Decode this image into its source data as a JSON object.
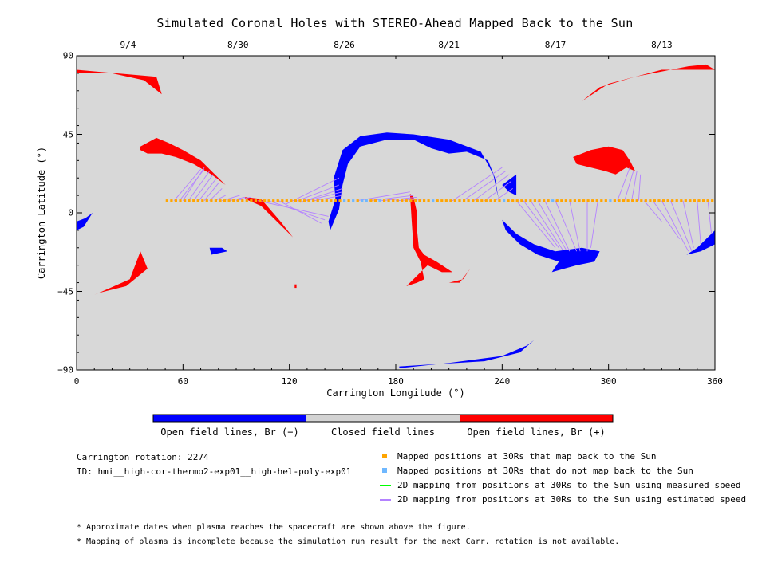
{
  "chart_data": {
    "type": "map",
    "title": "Simulated Coronal Holes with STEREO-Ahead Mapped Back to the Sun",
    "xlabel": "Carrington Longitude (°)",
    "ylabel": "Carrington Latitude (°)",
    "xlim": [
      0,
      360
    ],
    "ylim": [
      -90,
      90
    ],
    "x_ticks": [
      "0",
      "60",
      "120",
      "180",
      "240",
      "300",
      "360"
    ],
    "y_ticks": [
      "90",
      "45",
      "0",
      "−45",
      "−90"
    ],
    "top_axis": {
      "labels": [
        {
          "text": "9/4",
          "lon": 29
        },
        {
          "text": "8/30",
          "lon": 91
        },
        {
          "text": "8/26",
          "lon": 151
        },
        {
          "text": "8/21",
          "lon": 210
        },
        {
          "text": "8/17",
          "lon": 270
        },
        {
          "text": "8/13",
          "lon": 330
        }
      ]
    },
    "colors": {
      "background": "#d8d8d8",
      "negative": "#0000ff",
      "positive": "#ff0000",
      "closed": "#d3d3d3",
      "mapped": "#ffa500",
      "unmapped": "#6fb8ff",
      "measured": "#00ff00",
      "estimated": "#b482ff"
    },
    "regions": [
      {
        "polarity": "positive",
        "points": [
          [
            0,
            82
          ],
          [
            45,
            78
          ],
          [
            48,
            68
          ],
          [
            38,
            76
          ],
          [
            20,
            80
          ],
          [
            0,
            80
          ]
        ]
      },
      {
        "polarity": "positive",
        "points": [
          [
            355,
            85
          ],
          [
            360,
            82
          ],
          [
            330,
            82
          ],
          [
            300,
            74
          ],
          [
            285,
            64
          ],
          [
            295,
            72
          ],
          [
            315,
            78
          ],
          [
            345,
            84
          ]
        ]
      },
      {
        "polarity": "positive",
        "points": [
          [
            36,
            38
          ],
          [
            45,
            43
          ],
          [
            52,
            40
          ],
          [
            60,
            36
          ],
          [
            70,
            30
          ],
          [
            80,
            20
          ],
          [
            84,
            16
          ],
          [
            76,
            22
          ],
          [
            66,
            28
          ],
          [
            56,
            32
          ],
          [
            48,
            34
          ],
          [
            40,
            34
          ],
          [
            36,
            36
          ]
        ]
      },
      {
        "polarity": "positive",
        "points": [
          [
            280,
            32
          ],
          [
            290,
            36
          ],
          [
            300,
            38
          ],
          [
            308,
            36
          ],
          [
            312,
            30
          ],
          [
            315,
            24
          ],
          [
            310,
            26
          ],
          [
            304,
            22
          ],
          [
            298,
            24
          ],
          [
            290,
            26
          ],
          [
            282,
            28
          ]
        ]
      },
      {
        "polarity": "positive",
        "points": [
          [
            10,
            -47
          ],
          [
            30,
            -38
          ],
          [
            36,
            -22
          ],
          [
            40,
            -32
          ],
          [
            28,
            -42
          ],
          [
            12,
            -46
          ]
        ]
      },
      {
        "polarity": "positive",
        "points": [
          [
            95,
            9
          ],
          [
            104,
            8
          ],
          [
            115,
            -5
          ],
          [
            122,
            -14
          ],
          [
            116,
            -8
          ],
          [
            104,
            4
          ],
          [
            95,
            8
          ]
        ]
      },
      {
        "polarity": "positive",
        "points": [
          [
            188,
            11
          ],
          [
            190,
            9
          ],
          [
            192,
            0
          ],
          [
            192,
            -10
          ],
          [
            193,
            -20
          ],
          [
            196,
            -24
          ],
          [
            203,
            -28
          ],
          [
            212,
            -34
          ],
          [
            206,
            -34
          ],
          [
            198,
            -30
          ],
          [
            194,
            -34
          ],
          [
            190,
            -38
          ],
          [
            186,
            -42
          ],
          [
            192,
            -40
          ],
          [
            196,
            -38
          ],
          [
            194,
            -28
          ],
          [
            190,
            -20
          ],
          [
            189,
            -5
          ]
        ]
      },
      {
        "polarity": "positive",
        "points": [
          [
            206,
            -40
          ],
          [
            216,
            -40
          ],
          [
            222,
            -32
          ],
          [
            218,
            -38
          ],
          [
            210,
            -40
          ]
        ]
      },
      {
        "polarity": "positive",
        "points": [
          [
            123,
            -41
          ],
          [
            124,
            -41
          ],
          [
            124,
            -43
          ],
          [
            123,
            -43
          ]
        ]
      },
      {
        "polarity": "negative",
        "points": [
          [
            145,
            20
          ],
          [
            150,
            36
          ],
          [
            160,
            44
          ],
          [
            175,
            46
          ],
          [
            190,
            45
          ],
          [
            210,
            42
          ],
          [
            228,
            35
          ],
          [
            235,
            22
          ],
          [
            238,
            8
          ],
          [
            236,
            20
          ],
          [
            232,
            30
          ],
          [
            220,
            35
          ],
          [
            210,
            34
          ],
          [
            200,
            37
          ],
          [
            190,
            42
          ],
          [
            175,
            42
          ],
          [
            160,
            38
          ],
          [
            153,
            28
          ],
          [
            150,
            16
          ],
          [
            148,
            2
          ],
          [
            143,
            -10
          ],
          [
            142,
            -5
          ],
          [
            146,
            8
          ]
        ]
      },
      {
        "polarity": "negative",
        "points": [
          [
            240,
            16
          ],
          [
            248,
            22
          ],
          [
            248,
            10
          ],
          [
            244,
            12
          ]
        ]
      },
      {
        "polarity": "negative",
        "points": [
          [
            240,
            -4
          ],
          [
            248,
            -12
          ],
          [
            258,
            -18
          ],
          [
            270,
            -22
          ],
          [
            285,
            -20
          ],
          [
            295,
            -22
          ],
          [
            292,
            -28
          ],
          [
            282,
            -30
          ],
          [
            275,
            -32
          ],
          [
            268,
            -34
          ],
          [
            272,
            -28
          ],
          [
            260,
            -24
          ],
          [
            250,
            -18
          ],
          [
            242,
            -10
          ]
        ]
      },
      {
        "polarity": "negative",
        "points": [
          [
            350,
            -20
          ],
          [
            358,
            -12
          ],
          [
            360,
            -10
          ],
          [
            360,
            -18
          ],
          [
            352,
            -22
          ],
          [
            344,
            -24
          ]
        ]
      },
      {
        "polarity": "negative",
        "points": [
          [
            0,
            -5
          ],
          [
            5,
            -3
          ],
          [
            9,
            0
          ],
          [
            4,
            -8
          ],
          [
            0,
            -10
          ]
        ]
      },
      {
        "polarity": "negative",
        "points": [
          [
            75,
            -20
          ],
          [
            82,
            -20
          ],
          [
            85,
            -22
          ],
          [
            76,
            -24
          ]
        ]
      },
      {
        "polarity": "negative",
        "points": [
          [
            182,
            -88
          ],
          [
            230,
            -85
          ],
          [
            250,
            -80
          ],
          [
            258,
            -73
          ],
          [
            254,
            -76
          ],
          [
            240,
            -82
          ],
          [
            210,
            -86
          ],
          [
            182,
            -89
          ]
        ]
      }
    ],
    "mapped_track": {
      "lat": 7,
      "lon_start": 51,
      "lon_end": 360,
      "step": 2.5,
      "unmapped_lons": [
        152,
        155,
        160,
        163,
        170,
        202,
        240,
        268,
        302
      ]
    },
    "estimated_lines": [
      [
        [
          55,
          7
        ],
        [
          70,
          25
        ]
      ],
      [
        [
          58,
          7
        ],
        [
          72,
          25
        ]
      ],
      [
        [
          60,
          7
        ],
        [
          72,
          26
        ]
      ],
      [
        [
          63,
          7
        ],
        [
          75,
          24
        ]
      ],
      [
        [
          66,
          7
        ],
        [
          77,
          22
        ]
      ],
      [
        [
          69,
          7
        ],
        [
          79,
          20
        ]
      ],
      [
        [
          72,
          7
        ],
        [
          80,
          17
        ]
      ],
      [
        [
          75,
          7
        ],
        [
          82,
          14
        ]
      ],
      [
        [
          78,
          7
        ],
        [
          84,
          10
        ]
      ],
      [
        [
          82,
          7
        ],
        [
          92,
          10
        ]
      ],
      [
        [
          86,
          7
        ],
        [
          95,
          9
        ]
      ],
      [
        [
          90,
          7
        ],
        [
          98,
          9
        ]
      ],
      [
        [
          118,
          5
        ],
        [
          148,
          20
        ]
      ],
      [
        [
          122,
          6
        ],
        [
          148,
          16
        ]
      ],
      [
        [
          126,
          6
        ],
        [
          150,
          14
        ]
      ],
      [
        [
          130,
          7
        ],
        [
          150,
          12
        ]
      ],
      [
        [
          134,
          7
        ],
        [
          150,
          10
        ]
      ],
      [
        [
          102,
          7
        ],
        [
          142,
          -2
        ]
      ],
      [
        [
          108,
          7
        ],
        [
          140,
          -4
        ]
      ],
      [
        [
          114,
          7
        ],
        [
          138,
          -6
        ]
      ],
      [
        [
          158,
          7
        ],
        [
          188,
          12
        ]
      ],
      [
        [
          165,
          7
        ],
        [
          190,
          10
        ]
      ],
      [
        [
          172,
          7
        ],
        [
          192,
          9
        ]
      ],
      [
        [
          180,
          7
        ],
        [
          196,
          8
        ]
      ],
      [
        [
          212,
          7
        ],
        [
          240,
          26
        ]
      ],
      [
        [
          218,
          7
        ],
        [
          242,
          24
        ]
      ],
      [
        [
          224,
          7
        ],
        [
          244,
          22
        ]
      ],
      [
        [
          230,
          7
        ],
        [
          245,
          18
        ]
      ],
      [
        [
          236,
          7
        ],
        [
          246,
          14
        ]
      ],
      [
        [
          248,
          7
        ],
        [
          270,
          -20
        ]
      ],
      [
        [
          252,
          7
        ],
        [
          272,
          -20
        ]
      ],
      [
        [
          256,
          7
        ],
        [
          274,
          -21
        ]
      ],
      [
        [
          260,
          7
        ],
        [
          276,
          -21
        ]
      ],
      [
        [
          264,
          7
        ],
        [
          278,
          -22
        ]
      ],
      [
        [
          270,
          7
        ],
        [
          282,
          -22
        ]
      ],
      [
        [
          278,
          7
        ],
        [
          284,
          -22
        ]
      ],
      [
        [
          288,
          7
        ],
        [
          288,
          -22
        ]
      ],
      [
        [
          294,
          7
        ],
        [
          290,
          -20
        ]
      ],
      [
        [
          305,
          7
        ],
        [
          312,
          26
        ]
      ],
      [
        [
          309,
          7
        ],
        [
          314,
          24
        ]
      ],
      [
        [
          313,
          7
        ],
        [
          316,
          24
        ]
      ],
      [
        [
          317,
          7
        ],
        [
          318,
          22
        ]
      ],
      [
        [
          320,
          7
        ],
        [
          330,
          -5
        ]
      ],
      [
        [
          325,
          7
        ],
        [
          340,
          -15
        ]
      ],
      [
        [
          330,
          7
        ],
        [
          345,
          -22
        ]
      ],
      [
        [
          335,
          7
        ],
        [
          347,
          -22
        ]
      ],
      [
        [
          342,
          7
        ],
        [
          348,
          -20
        ]
      ],
      [
        [
          350,
          7
        ],
        [
          352,
          -18
        ]
      ],
      [
        [
          356,
          7
        ],
        [
          358,
          -12
        ]
      ]
    ],
    "colorbar_labels": [
      "Open field lines, Br (−)",
      "Closed field lines",
      "Open field lines, Br (+)"
    ],
    "info": {
      "rotation": "Carrington rotation: 2274",
      "id": "ID: hmi__high-cor-thermo2-exp01__high-hel-poly-exp01"
    },
    "legend": [
      {
        "label": "Mapped positions at 30Rs that map back to the Sun",
        "color": "#ffa500",
        "kind": "square"
      },
      {
        "label": "Mapped positions at 30Rs that do not map back to the Sun",
        "color": "#6fb8ff",
        "kind": "square"
      },
      {
        "label": "2D mapping from positions at 30Rs to the Sun using measured speed",
        "color": "#00ff00",
        "kind": "line"
      },
      {
        "label": "2D mapping from positions at 30Rs to the Sun using estimated speed",
        "color": "#b482ff",
        "kind": "line"
      }
    ],
    "footnotes": [
      "* Approximate dates when plasma reaches the spacecraft are shown above the figure.",
      "* Mapping of plasma is incomplete because the simulation run result for the next Carr. rotation is not available."
    ]
  }
}
